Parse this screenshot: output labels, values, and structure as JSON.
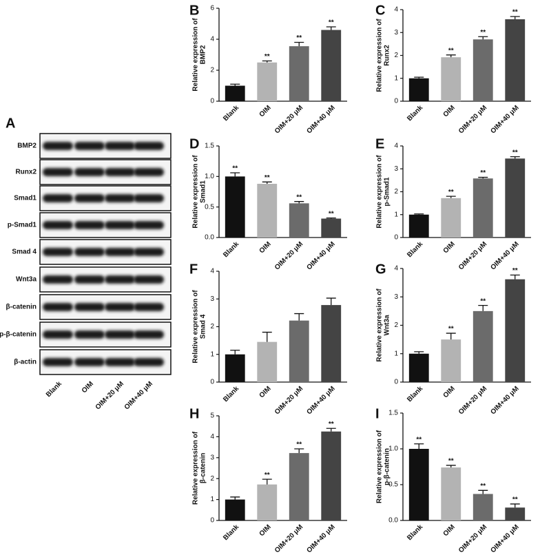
{
  "blot": {
    "panel": "A",
    "rows": [
      "BMP2",
      "Runx2",
      "Smad1",
      "p-Smad1",
      "Smad 4",
      "Wnt3a",
      "β-catenin",
      "p-β-catenin",
      "β-actin"
    ],
    "lanes": [
      "Blank",
      "OIM",
      "OIM+20 μM",
      "OIM+40 μM"
    ]
  },
  "chart_data": [
    {
      "type": "bar",
      "panel": "B",
      "ylabel": [
        "Relative expression of",
        "BMP2"
      ],
      "categories": [
        "Blank",
        "OIM",
        "OIM+20 μM",
        "OIM+40 μM"
      ],
      "values": [
        1.0,
        2.5,
        3.55,
        4.6
      ],
      "error": [
        0.1,
        0.1,
        0.25,
        0.2
      ],
      "annotations": [
        null,
        "**",
        "**",
        "**"
      ],
      "colors": [
        "#111111",
        "#b3b3b3",
        "#6b6b6b",
        "#444444"
      ],
      "ylim": [
        0,
        6
      ],
      "yticks": [
        0,
        2,
        4,
        6
      ]
    },
    {
      "type": "bar",
      "panel": "C",
      "ylabel": [
        "Relative expression of",
        "Runx2"
      ],
      "categories": [
        "Blank",
        "OIM",
        "OIM+20 μM",
        "OIM+40 μM"
      ],
      "values": [
        1.0,
        1.92,
        2.7,
        3.58
      ],
      "error": [
        0.05,
        0.1,
        0.12,
        0.12
      ],
      "annotations": [
        null,
        "**",
        "**",
        "**"
      ],
      "colors": [
        "#111111",
        "#b3b3b3",
        "#6b6b6b",
        "#444444"
      ],
      "ylim": [
        0,
        4
      ],
      "yticks": [
        0,
        1,
        2,
        3,
        4
      ]
    },
    {
      "type": "bar",
      "panel": "D",
      "ylabel": [
        "Relative expression of",
        "Smad1"
      ],
      "categories": [
        "Blank",
        "OIM",
        "OIM+20 μM",
        "OIM+40 μM"
      ],
      "values": [
        1.0,
        0.88,
        0.56,
        0.31
      ],
      "error": [
        0.06,
        0.03,
        0.03,
        0.01
      ],
      "annotations": [
        "**",
        "**",
        "**",
        "**"
      ],
      "colors": [
        "#111111",
        "#b3b3b3",
        "#6b6b6b",
        "#444444"
      ],
      "ylim": [
        0,
        1.5
      ],
      "yticks": [
        {
          "value": 0,
          "label": "0.0"
        },
        0.5,
        {
          "value": 1,
          "label": "1.0"
        },
        1.5
      ]
    },
    {
      "type": "bar",
      "panel": "E",
      "ylabel": [
        "Relative expression of",
        "p-Smad1"
      ],
      "categories": [
        "Blank",
        "OIM",
        "OIM+20 μM",
        "OIM+40 μM"
      ],
      "values": [
        1.0,
        1.72,
        2.58,
        3.45
      ],
      "error": [
        0.03,
        0.08,
        0.05,
        0.08
      ],
      "annotations": [
        null,
        "**",
        "**",
        "**"
      ],
      "colors": [
        "#111111",
        "#b3b3b3",
        "#6b6b6b",
        "#444444"
      ],
      "ylim": [
        0,
        4
      ],
      "yticks": [
        0,
        1,
        2,
        3,
        4
      ]
    },
    {
      "type": "bar",
      "panel": "F",
      "ylabel": [
        "Relative expression of",
        "Smad 4"
      ],
      "categories": [
        "Blank",
        "OIM",
        "OIM+20 μM",
        "OIM+40 μM"
      ],
      "values": [
        1.0,
        1.45,
        2.22,
        2.78
      ],
      "error": [
        0.15,
        0.35,
        0.25,
        0.25
      ],
      "colors": [
        "#111111",
        "#b3b3b3",
        "#6b6b6b",
        "#444444"
      ],
      "ylim": [
        0,
        4
      ],
      "yticks": [
        0,
        1,
        2,
        3,
        4
      ]
    },
    {
      "type": "bar",
      "panel": "G",
      "ylabel": [
        "Relative expression of",
        "Wnt3a"
      ],
      "categories": [
        "Blank",
        "OIM",
        "OIM+20 μM",
        "OIM+40 μM"
      ],
      "values": [
        1.0,
        1.5,
        2.5,
        3.62
      ],
      "error": [
        0.07,
        0.22,
        0.2,
        0.15
      ],
      "annotations": [
        null,
        "**",
        "**",
        "**"
      ],
      "colors": [
        "#111111",
        "#b3b3b3",
        "#6b6b6b",
        "#444444"
      ],
      "ylim": [
        0,
        4
      ],
      "yticks": [
        0,
        1,
        2,
        3,
        4
      ]
    },
    {
      "type": "bar",
      "panel": "H",
      "ylabel": [
        "Relative expression of",
        "β-catenin"
      ],
      "categories": [
        "Blank",
        "OIM",
        "OIM+20 μM",
        "OIM+40 μM"
      ],
      "values": [
        1.0,
        1.72,
        3.22,
        4.25
      ],
      "error": [
        0.12,
        0.25,
        0.2,
        0.15
      ],
      "annotations": [
        null,
        "**",
        "**",
        "**"
      ],
      "colors": [
        "#111111",
        "#b3b3b3",
        "#6b6b6b",
        "#444444"
      ],
      "ylim": [
        0,
        5
      ],
      "yticks": [
        0,
        1,
        2,
        3,
        4,
        5
      ]
    },
    {
      "type": "bar",
      "panel": "I",
      "ylabel": [
        "Relative expression of",
        "p-β-catenin"
      ],
      "categories": [
        "Blank",
        "OIM",
        "OIM+20 μM",
        "OIM+40 μM"
      ],
      "values": [
        1.0,
        0.74,
        0.37,
        0.18
      ],
      "error": [
        0.07,
        0.03,
        0.05,
        0.05
      ],
      "annotations": [
        "**",
        "**",
        "**",
        "**"
      ],
      "colors": [
        "#111111",
        "#b3b3b3",
        "#6b6b6b",
        "#444444"
      ],
      "ylim": [
        0,
        1.5
      ],
      "yticks": [
        {
          "value": 0,
          "label": "0.0"
        },
        0.5,
        {
          "value": 1,
          "label": "1.0"
        },
        1.5
      ]
    }
  ]
}
